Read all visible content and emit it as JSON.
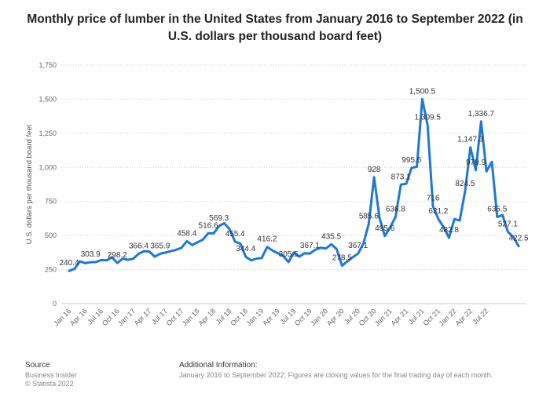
{
  "chart_data": {
    "type": "line",
    "title": "Monthly price of lumber in the United States from January 2016 to September 2022 (in U.S. dollars per thousand board feet)",
    "xlabel": "",
    "ylabel": "U.S. dollars per thousand board feet",
    "ylim": [
      0,
      1750
    ],
    "yticks": [
      "0",
      "250",
      "500",
      "750",
      "1,000",
      "1,250",
      "1,500",
      "1,750"
    ],
    "ytick_values": [
      0,
      250,
      500,
      750,
      1000,
      1250,
      1500,
      1750
    ],
    "grid": true,
    "color": "#1f78d1",
    "xtick_labels": [
      "Jan 16",
      "Apr 16",
      "Jul 16",
      "Oct 16",
      "Jan 17",
      "Apr 17",
      "Jul 17",
      "Oct 17",
      "Jan 18",
      "Apr 18",
      "Jul 18",
      "Oct 18",
      "Jan 19",
      "Apr 19",
      "Jul 19",
      "Oct 19",
      "Jan 20",
      "Apr 20",
      "Jul 20",
      "Oct 20",
      "Jan 21",
      "Apr 21",
      "Jul 21",
      "Oct 21",
      "Jan 22",
      "Apr 22",
      "Jul 22"
    ],
    "xtick_index": [
      0,
      3,
      6,
      9,
      12,
      15,
      18,
      21,
      24,
      27,
      30,
      33,
      36,
      39,
      42,
      45,
      48,
      51,
      54,
      57,
      60,
      63,
      66,
      69,
      72,
      75,
      78
    ],
    "values": [
      240.4,
      255,
      310,
      297,
      303.9,
      305,
      320,
      318,
      340,
      298.2,
      330,
      322,
      330,
      366.4,
      385,
      382,
      345,
      365.9,
      375,
      385,
      395,
      410,
      458.4,
      430,
      450,
      470,
      516.6,
      515,
      569.3,
      590,
      545,
      455.4,
      440,
      344.4,
      318,
      330,
      335,
      416.2,
      390,
      370,
      350,
      305.5,
      375,
      345,
      370,
      367.1,
      395,
      410,
      405,
      435.5,
      400,
      278.5,
      310,
      340,
      367.1,
      440,
      585.6,
      928,
      630,
      495.6,
      560,
      636.8,
      873.1,
      880,
      995.6,
      1005,
      1500.5,
      1309.5,
      716,
      621.2,
      560,
      482.8,
      620,
      610,
      824.5,
      1147.3,
      979.9,
      1336.7,
      970,
      1040,
      635.5,
      650,
      527.1,
      490,
      422.5
    ],
    "data_labels": [
      {
        "index": 0,
        "text": "240.4"
      },
      {
        "index": 4,
        "text": "303.9"
      },
      {
        "index": 9,
        "text": "298.2"
      },
      {
        "index": 13,
        "text": "366.4"
      },
      {
        "index": 17,
        "text": "365.9"
      },
      {
        "index": 22,
        "text": "458.4"
      },
      {
        "index": 26,
        "text": "516.6"
      },
      {
        "index": 28,
        "text": "569.3"
      },
      {
        "index": 31,
        "text": "455.4"
      },
      {
        "index": 33,
        "text": "344.4"
      },
      {
        "index": 37,
        "text": "416.2"
      },
      {
        "index": 41,
        "text": "305.5"
      },
      {
        "index": 45,
        "text": "367.1"
      },
      {
        "index": 49,
        "text": "435.5"
      },
      {
        "index": 51,
        "text": "278.5"
      },
      {
        "index": 54,
        "text": "367.1"
      },
      {
        "index": 56,
        "text": "585.6"
      },
      {
        "index": 57,
        "text": "928"
      },
      {
        "index": 59,
        "text": "495.6"
      },
      {
        "index": 61,
        "text": "636.8"
      },
      {
        "index": 62,
        "text": "873.1"
      },
      {
        "index": 64,
        "text": "995.6"
      },
      {
        "index": 66,
        "text": "1,500.5"
      },
      {
        "index": 67,
        "text": "1,309.5"
      },
      {
        "index": 68,
        "text": "716"
      },
      {
        "index": 69,
        "text": "621.2"
      },
      {
        "index": 71,
        "text": "482.8"
      },
      {
        "index": 74,
        "text": "824.5"
      },
      {
        "index": 75,
        "text": "1,147.3"
      },
      {
        "index": 76,
        "text": "979.9"
      },
      {
        "index": 77,
        "text": "1,336.7"
      },
      {
        "index": 80,
        "text": "635.5"
      },
      {
        "index": 82,
        "text": "527.1"
      },
      {
        "index": 84,
        "text": "422.5"
      }
    ]
  },
  "footer": {
    "source_heading": "Source",
    "source_line1": "Business Insider",
    "source_line2": "© Statista 2022",
    "info_heading": "Additional Information:",
    "info_text": "January 2016 to September 2022; Figures are closing values for the final trading day of each month."
  }
}
